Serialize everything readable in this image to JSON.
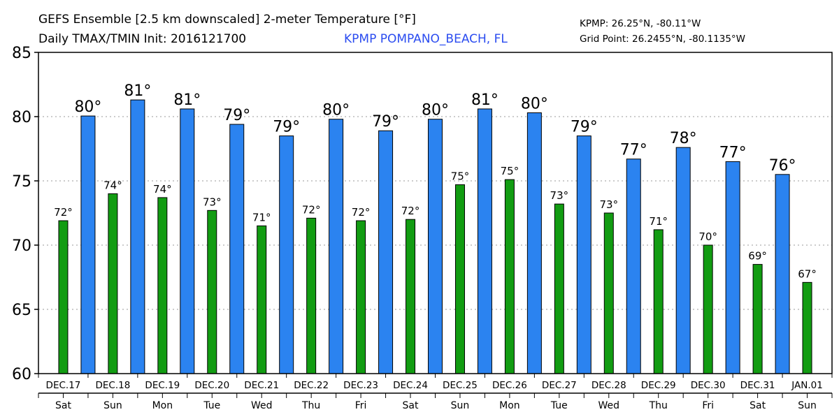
{
  "header": {
    "title_line1": "GEFS Ensemble [2.5 km downscaled] 2-meter Temperature [°F]",
    "title_line2": "Daily TMAX/TMIN Init: 2016121700",
    "station": "KPMP POMPANO_BEACH, FL",
    "station_coords": "KPMP: 26.25°N, -80.11°W",
    "grid_point": "Grid Point: 26.2455°N, -80.1135°W"
  },
  "chart_data": {
    "type": "bar",
    "title": "GEFS Ensemble [2.5 km downscaled] 2-meter Temperature [°F]",
    "xlabel": "",
    "ylabel": "",
    "ylim": [
      60,
      85
    ],
    "yticks": [
      "60",
      "65",
      "70",
      "75",
      "80",
      "85"
    ],
    "grid": true,
    "days": [
      "DEC.17",
      "DEC.18",
      "DEC.19",
      "DEC.20",
      "DEC.21",
      "DEC.22",
      "DEC.23",
      "DEC.24",
      "DEC.25",
      "DEC.26",
      "DEC.27",
      "DEC.28",
      "DEC.29",
      "DEC.30",
      "DEC.31",
      "JAN.01"
    ],
    "weekdays": [
      "Sat",
      "Sun",
      "Mon",
      "Tue",
      "Wed",
      "Thu",
      "Fri",
      "Sat",
      "Sun",
      "Mon",
      "Tue",
      "Wed",
      "Thu",
      "Fri",
      "Sat",
      "Sun"
    ],
    "series": [
      {
        "name": "TMIN",
        "color": "#129c12",
        "position": "day-center",
        "values": [
          71.9,
          74.0,
          73.7,
          72.7,
          71.5,
          72.1,
          71.9,
          72.0,
          74.7,
          75.1,
          73.2,
          72.5,
          71.2,
          70.0,
          68.5,
          67.1
        ],
        "labels": [
          "72°",
          "74°",
          "74°",
          "73°",
          "71°",
          "72°",
          "72°",
          "72°",
          "75°",
          "75°",
          "73°",
          "73°",
          "71°",
          "70°",
          "69°",
          "67°"
        ]
      },
      {
        "name": "TMAX",
        "color": "#2b83f0",
        "position": "day-boundary",
        "values": [
          80.05,
          81.3,
          80.6,
          79.4,
          78.5,
          79.8,
          78.9,
          79.8,
          80.6,
          80.3,
          78.5,
          76.7,
          77.6,
          76.5,
          75.5
        ],
        "labels": [
          "80°",
          "81°",
          "81°",
          "79°",
          "79°",
          "80°",
          "79°",
          "80°",
          "81°",
          "80°",
          "79°",
          "77°",
          "78°",
          "77°",
          "76°"
        ]
      }
    ]
  }
}
